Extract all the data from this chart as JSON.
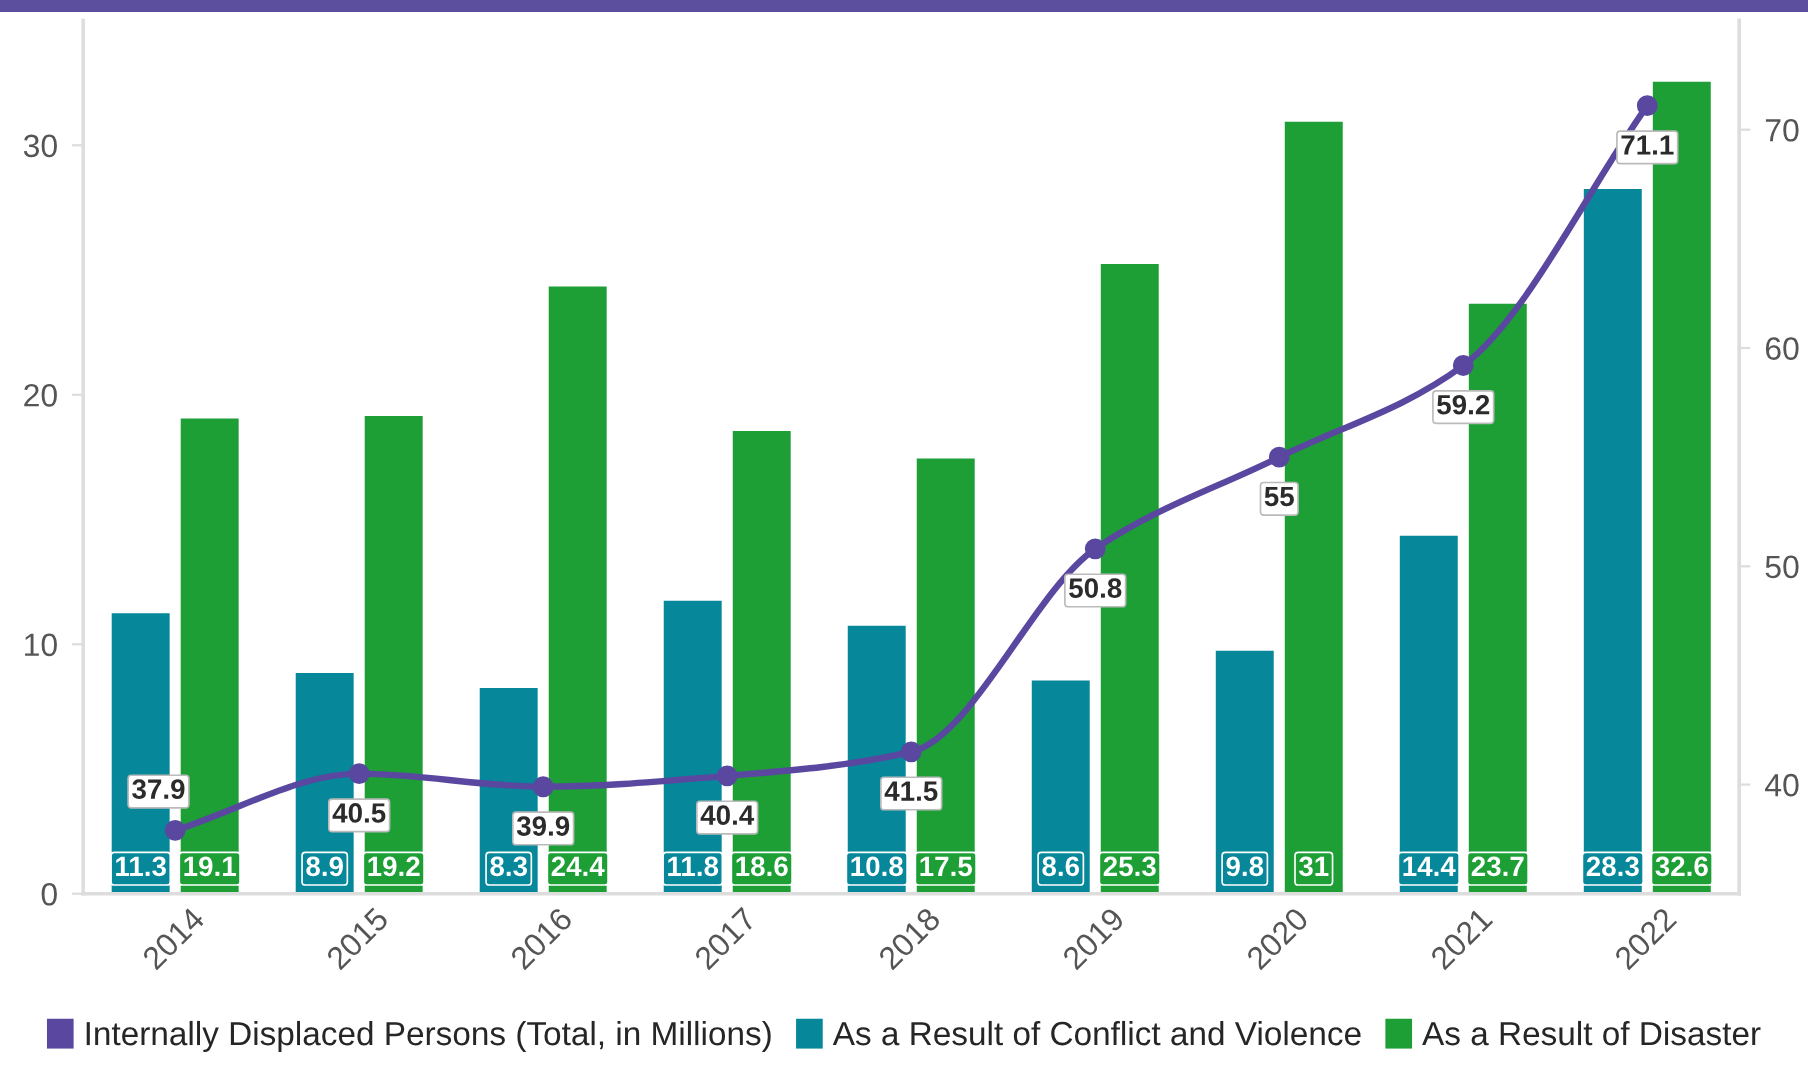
{
  "chart_data": {
    "type": "bar",
    "categories": [
      "2014",
      "2015",
      "2016",
      "2017",
      "2018",
      "2019",
      "2020",
      "2021",
      "2022"
    ],
    "series": [
      {
        "name": "Internally Displaced Persons (Total, in Millions)",
        "type": "line",
        "axis": "y2",
        "color": "#5a47a0",
        "values": [
          37.9,
          40.5,
          39.9,
          40.4,
          41.5,
          50.8,
          55,
          59.2,
          71.1
        ]
      },
      {
        "name": "As a Result of Conflict and Violence",
        "color": "#07879a",
        "values": [
          11.3,
          8.9,
          8.3,
          11.8,
          10.8,
          8.6,
          9.8,
          14.4,
          28.3
        ]
      },
      {
        "name": "As a Result of Disaster",
        "color": "#1d9f36",
        "values": [
          19.1,
          19.2,
          24.4,
          18.6,
          17.5,
          25.3,
          31,
          23.7,
          32.6
        ]
      }
    ],
    "ylim": [
      0,
      35
    ],
    "yticks": [
      0,
      10,
      20,
      30
    ],
    "y2lim": [
      35,
      75
    ],
    "y2ticks": [
      40,
      50,
      60,
      70
    ],
    "data_labels": true,
    "legend": "bottom",
    "grid": false,
    "marker": "circle"
  }
}
